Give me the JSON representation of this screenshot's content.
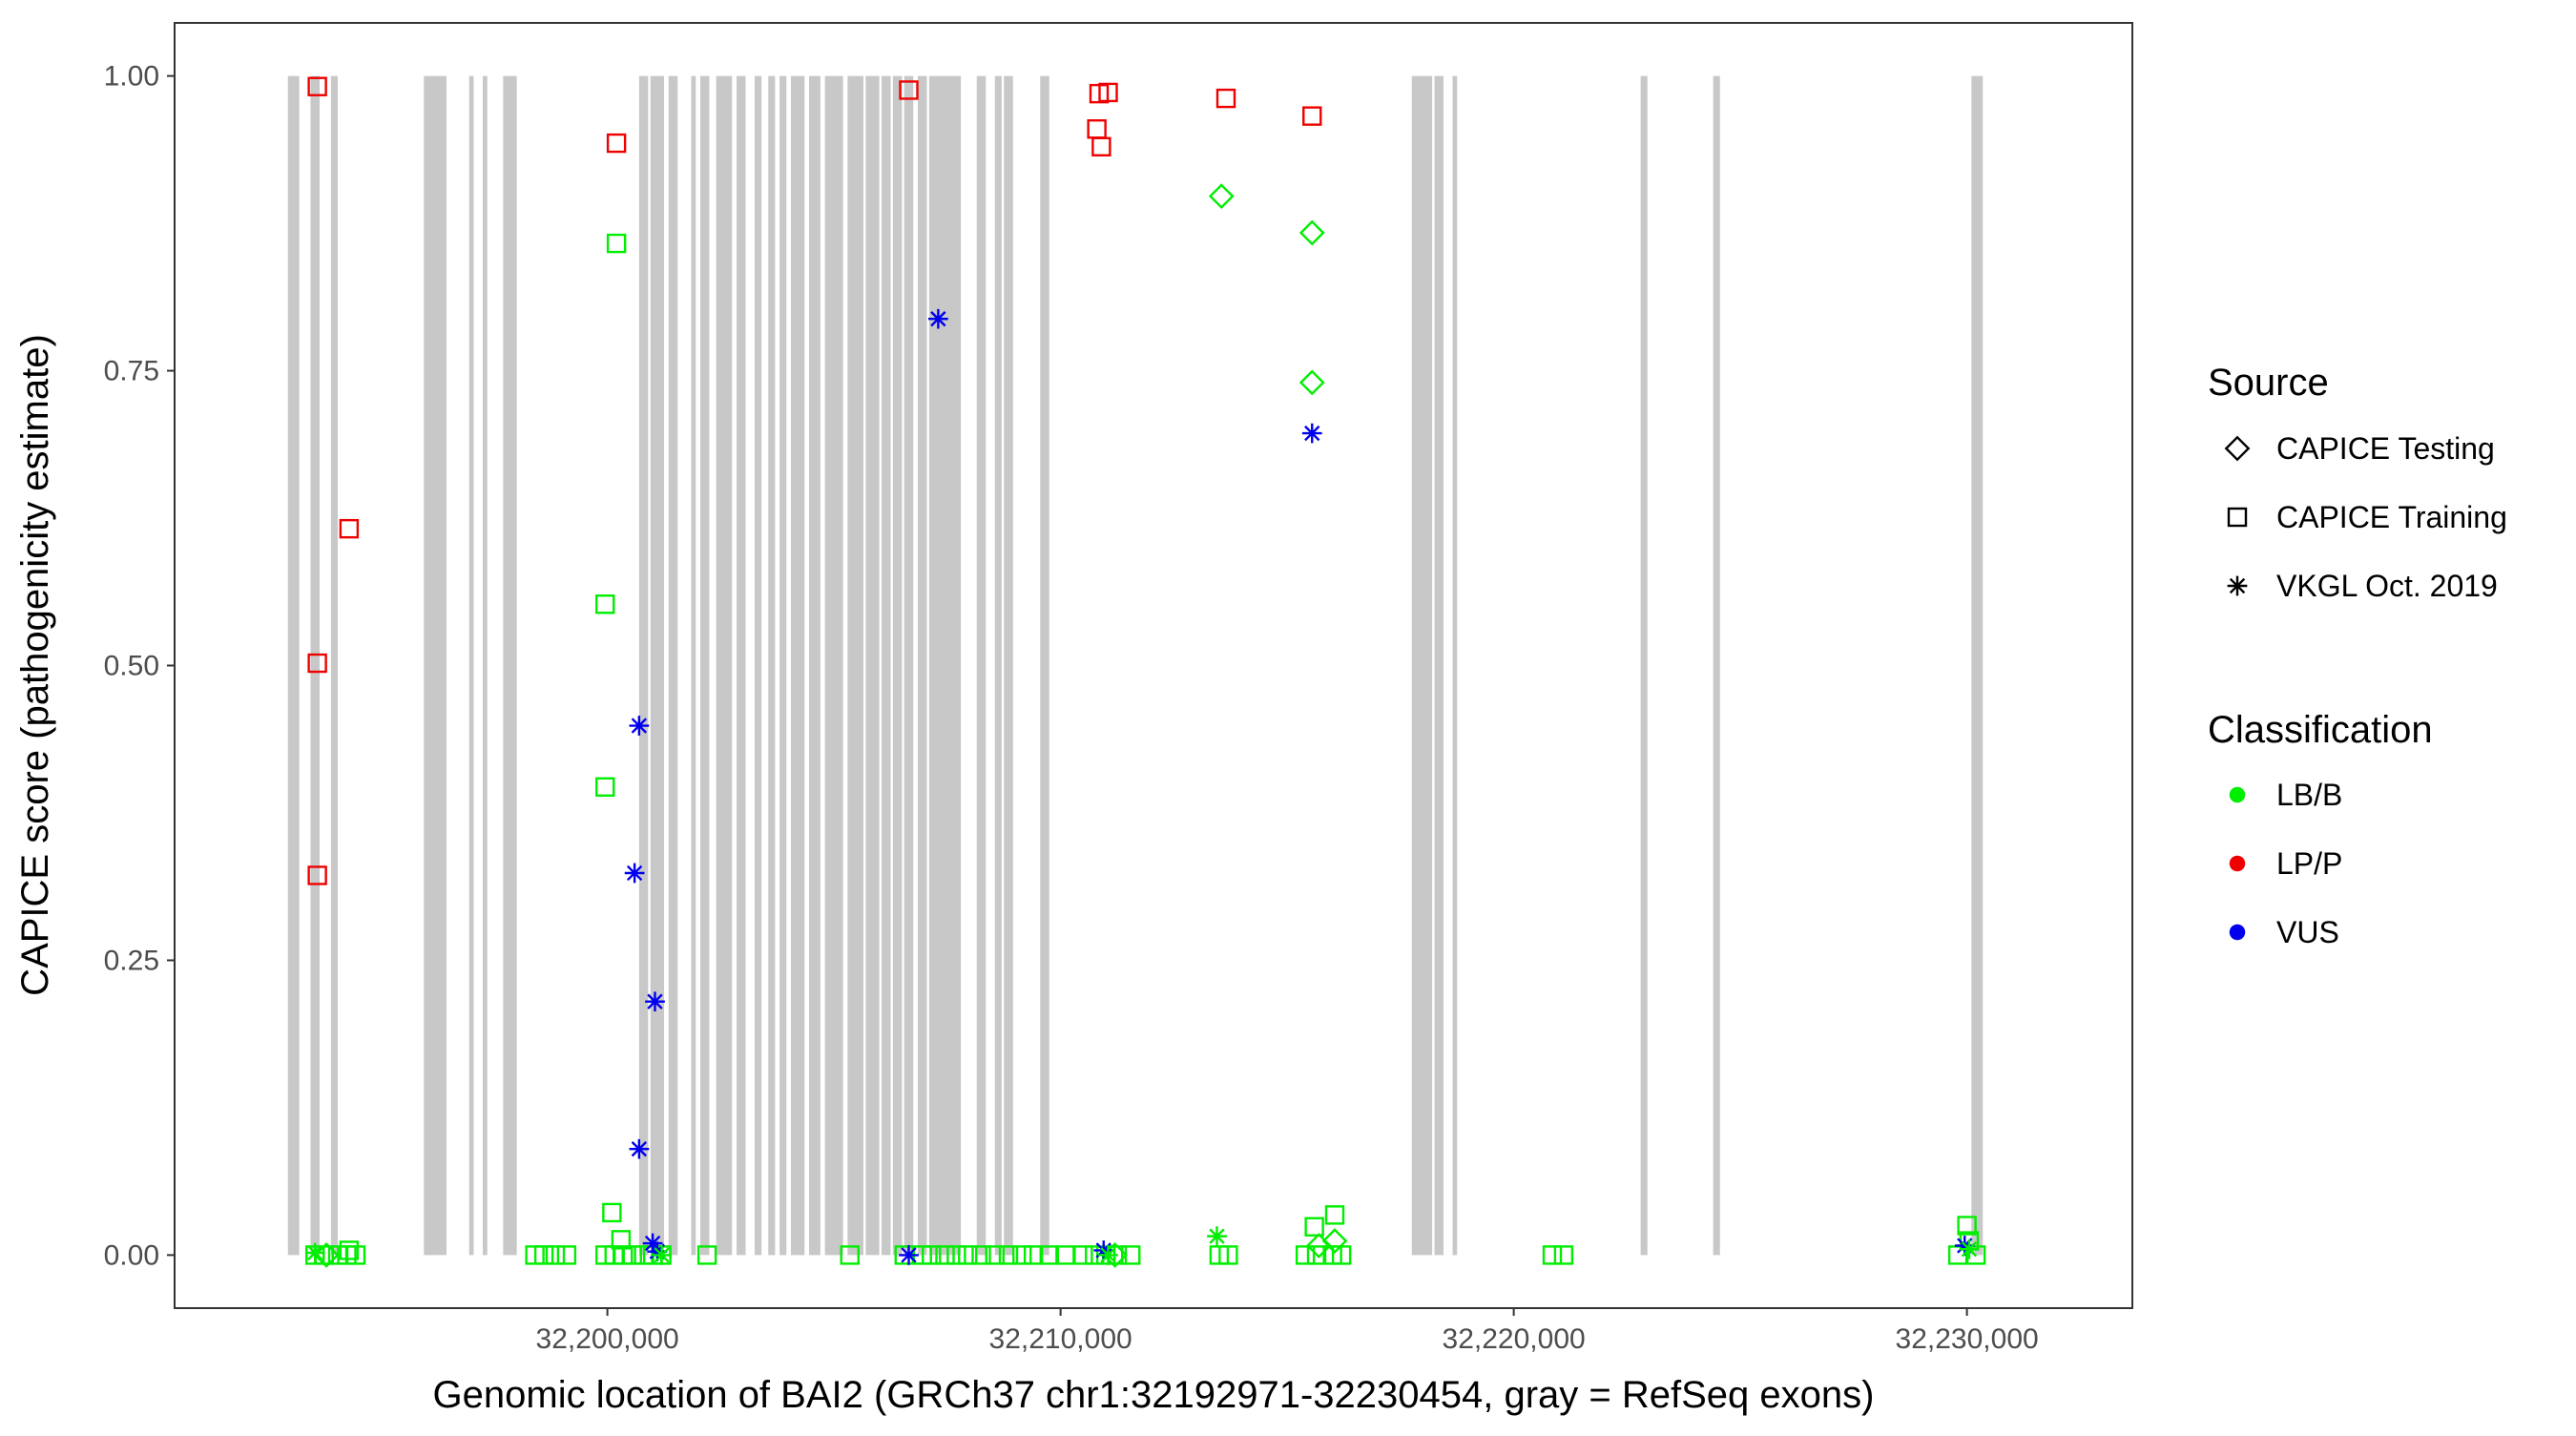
{
  "chart_data": {
    "type": "scatter",
    "xlabel": "Genomic location of BAI2 (GRCh37 chr1:32192971-32230454, gray = RefSeq exons)",
    "ylabel": "CAPICE score (pathogenicity estimate)",
    "xlim": [
      32190450,
      32233650
    ],
    "ylim": [
      -0.045,
      1.045
    ],
    "x_ticks": [
      32200000,
      32210000,
      32220000,
      32230000
    ],
    "x_tick_labels": [
      "32,200,000",
      "32,210,000",
      "32,220,000",
      "32,230,000"
    ],
    "y_ticks": [
      0,
      0.25,
      0.5,
      0.75,
      1.0
    ],
    "y_tick_labels": [
      "0.00",
      "0.25",
      "0.50",
      "0.75",
      "1.00"
    ],
    "grid": false,
    "exon_color": "#c8c8c8",
    "exons": [
      [
        32192950,
        32193200
      ],
      [
        32193450,
        32193650
      ],
      [
        32193900,
        32194050
      ],
      [
        32195950,
        32196450
      ],
      [
        32196950,
        32197050
      ],
      [
        32197250,
        32197350
      ],
      [
        32197700,
        32198000
      ],
      [
        32200700,
        32200900
      ],
      [
        32200950,
        32201250
      ],
      [
        32201350,
        32201550
      ],
      [
        32201850,
        32201950
      ],
      [
        32202050,
        32202250
      ],
      [
        32202400,
        32202750
      ],
      [
        32202850,
        32203050
      ],
      [
        32203250,
        32203400
      ],
      [
        32203550,
        32203700
      ],
      [
        32203800,
        32203950
      ],
      [
        32204050,
        32204350
      ],
      [
        32204450,
        32204700
      ],
      [
        32204800,
        32205200
      ],
      [
        32205300,
        32205650
      ],
      [
        32205700,
        32206000
      ],
      [
        32206050,
        32206250
      ],
      [
        32206300,
        32206500
      ],
      [
        32206550,
        32206750
      ],
      [
        32206850,
        32207050
      ],
      [
        32207100,
        32207800
      ],
      [
        32208150,
        32208350
      ],
      [
        32208550,
        32208700
      ],
      [
        32208750,
        32208950
      ],
      [
        32209550,
        32209750
      ],
      [
        32217750,
        32218200
      ],
      [
        32218250,
        32218450
      ],
      [
        32218650,
        32218750
      ],
      [
        32222800,
        32222950
      ],
      [
        32224400,
        32224550
      ],
      [
        32230100,
        32230350
      ]
    ],
    "legend": {
      "source_title": "Source",
      "source_items": [
        {
          "label": "CAPICE Testing",
          "shape": "diamond"
        },
        {
          "label": "CAPICE Training",
          "shape": "square"
        },
        {
          "label": "VKGL Oct. 2019",
          "shape": "asterisk"
        }
      ],
      "class_title": "Classification",
      "class_items": [
        {
          "label": "LB/B",
          "color": "#00ee00"
        },
        {
          "label": "LP/P",
          "color": "#ee0000"
        },
        {
          "label": "VUS",
          "color": "#0000ee"
        }
      ]
    },
    "series": [
      {
        "source": "CAPICE Training",
        "classification": "LP/P",
        "shape": "square",
        "color": "#ee0000",
        "points": [
          [
            32193600,
            0.991
          ],
          [
            32193600,
            0.502
          ],
          [
            32193600,
            0.322
          ],
          [
            32194300,
            0.616
          ],
          [
            32200200,
            0.943
          ],
          [
            32206650,
            0.988
          ],
          [
            32210850,
            0.985
          ],
          [
            32211050,
            0.986
          ],
          [
            32210800,
            0.955
          ],
          [
            32210900,
            0.94
          ],
          [
            32213650,
            0.981
          ],
          [
            32215550,
            0.966
          ]
        ]
      },
      {
        "source": "CAPICE Training",
        "classification": "LB/B",
        "shape": "square",
        "color": "#00ee00",
        "points": [
          [
            32200200,
            0.858
          ],
          [
            32199950,
            0.552
          ],
          [
            32199950,
            0.397
          ],
          [
            32200100,
            0.036
          ],
          [
            32200300,
            0.013
          ],
          [
            32215600,
            0.024
          ],
          [
            32216050,
            0.034
          ],
          [
            32230000,
            0.025
          ],
          [
            32230050,
            0.012
          ],
          [
            32193550,
            0.0
          ],
          [
            32193750,
            0.0
          ],
          [
            32194050,
            0.0
          ],
          [
            32194250,
            0.0
          ],
          [
            32194450,
            0.0
          ],
          [
            32194300,
            0.004
          ],
          [
            32198400,
            0.0
          ],
          [
            32198600,
            0.0
          ],
          [
            32198850,
            0.0
          ],
          [
            32199100,
            0.0
          ],
          [
            32199950,
            0.0
          ],
          [
            32200150,
            0.0
          ],
          [
            32200350,
            0.0
          ],
          [
            32200550,
            0.0
          ],
          [
            32200800,
            0.0
          ],
          [
            32201000,
            0.0
          ],
          [
            32201200,
            0.0
          ],
          [
            32202200,
            0.0
          ],
          [
            32205350,
            0.0
          ],
          [
            32206550,
            0.0
          ],
          [
            32206950,
            0.0
          ],
          [
            32207150,
            0.0
          ],
          [
            32207450,
            0.0
          ],
          [
            32207700,
            0.0
          ],
          [
            32207950,
            0.0
          ],
          [
            32208250,
            0.0
          ],
          [
            32208550,
            0.0
          ],
          [
            32208850,
            0.0
          ],
          [
            32209150,
            0.0
          ],
          [
            32209400,
            0.0
          ],
          [
            32209750,
            0.0
          ],
          [
            32210100,
            0.0
          ],
          [
            32210500,
            0.0
          ],
          [
            32210750,
            0.0
          ],
          [
            32211000,
            0.0
          ],
          [
            32211250,
            0.0
          ],
          [
            32211550,
            0.0
          ],
          [
            32213500,
            0.0
          ],
          [
            32213700,
            0.0
          ],
          [
            32215400,
            0.0
          ],
          [
            32215650,
            0.0
          ],
          [
            32216000,
            0.0
          ],
          [
            32216200,
            0.0
          ],
          [
            32220850,
            0.0
          ],
          [
            32221100,
            0.0
          ],
          [
            32229800,
            0.0
          ],
          [
            32230200,
            0.0
          ]
        ]
      },
      {
        "source": "CAPICE Testing",
        "classification": "LB/B",
        "shape": "diamond",
        "color": "#00ee00",
        "points": [
          [
            32213550,
            0.898
          ],
          [
            32215550,
            0.867
          ],
          [
            32215550,
            0.74
          ],
          [
            32215700,
            0.008
          ],
          [
            32216050,
            0.012
          ],
          [
            32193800,
            0.0
          ],
          [
            32211200,
            0.0
          ]
        ]
      },
      {
        "source": "VKGL Oct. 2019",
        "classification": "VUS",
        "shape": "asterisk",
        "color": "#0000ee",
        "points": [
          [
            32207300,
            0.794
          ],
          [
            32215550,
            0.697
          ],
          [
            32200700,
            0.449
          ],
          [
            32200600,
            0.324
          ],
          [
            32201050,
            0.215
          ],
          [
            32200700,
            0.09
          ],
          [
            32201000,
            0.01
          ],
          [
            32201100,
            0.003
          ],
          [
            32206650,
            0.0
          ],
          [
            32210950,
            0.004
          ],
          [
            32229950,
            0.008
          ]
        ]
      },
      {
        "source": "VKGL Oct. 2019",
        "classification": "LB/B",
        "shape": "asterisk",
        "color": "#00ee00",
        "points": [
          [
            32213450,
            0.016
          ],
          [
            32193550,
            0.002
          ],
          [
            32201200,
            0.0
          ],
          [
            32211050,
            0.0
          ],
          [
            32230050,
            0.005
          ]
        ]
      }
    ]
  }
}
